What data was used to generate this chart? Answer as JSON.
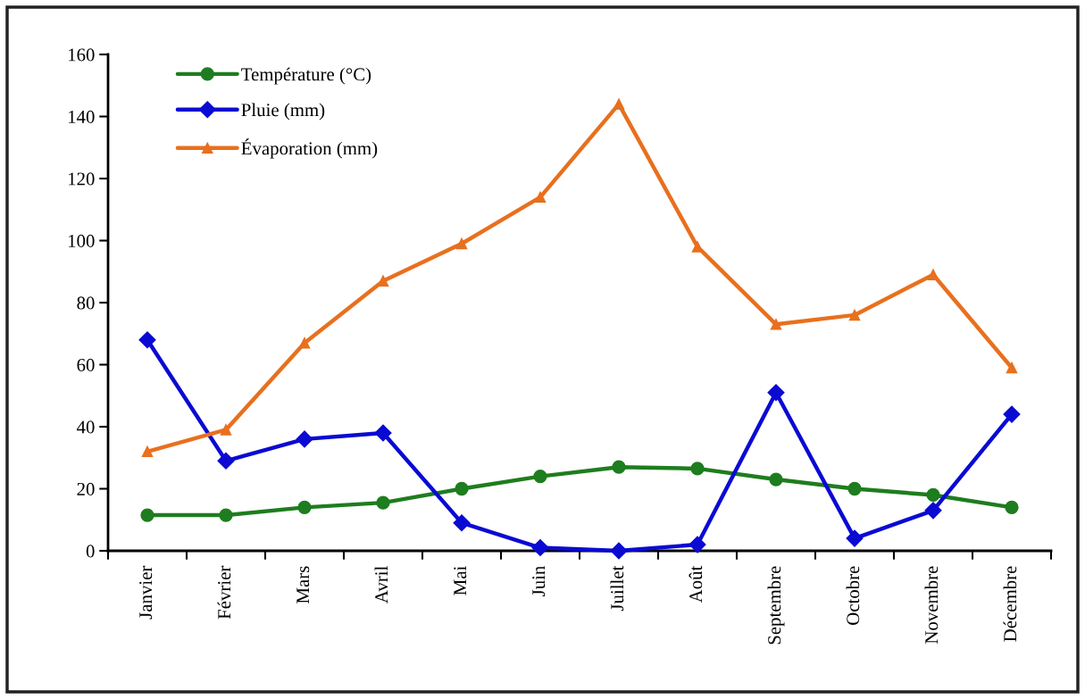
{
  "chart_data": {
    "type": "line",
    "categories": [
      "Janvier",
      "Février",
      "Mars",
      "Avril",
      "Mai",
      "Juin",
      "Juillet",
      "Août",
      "Septembre",
      "Octobre",
      "Novembre",
      "Décembre"
    ],
    "series": [
      {
        "name": "Température (°C)",
        "color": "#1e7d1e",
        "marker": "circle",
        "values": [
          11.5,
          11.5,
          14,
          15.5,
          20,
          24,
          27,
          26.5,
          23,
          20,
          18,
          14
        ]
      },
      {
        "name": "Pluie (mm)",
        "color": "#0a0ad2",
        "marker": "diamond",
        "values": [
          68,
          29,
          36,
          38,
          9,
          1,
          0,
          2,
          51,
          4,
          13,
          44
        ]
      },
      {
        "name": "Évaporation (mm)",
        "color": "#e8701e",
        "marker": "triangle",
        "values": [
          32,
          39,
          67,
          87,
          99,
          114,
          144,
          98,
          73,
          76,
          89,
          59
        ]
      }
    ],
    "ylim": [
      0,
      160
    ],
    "yticks": [
      0,
      20,
      40,
      60,
      80,
      100,
      120,
      140,
      160
    ],
    "grid": false,
    "legend": "top left",
    "line_style": "solid"
  }
}
